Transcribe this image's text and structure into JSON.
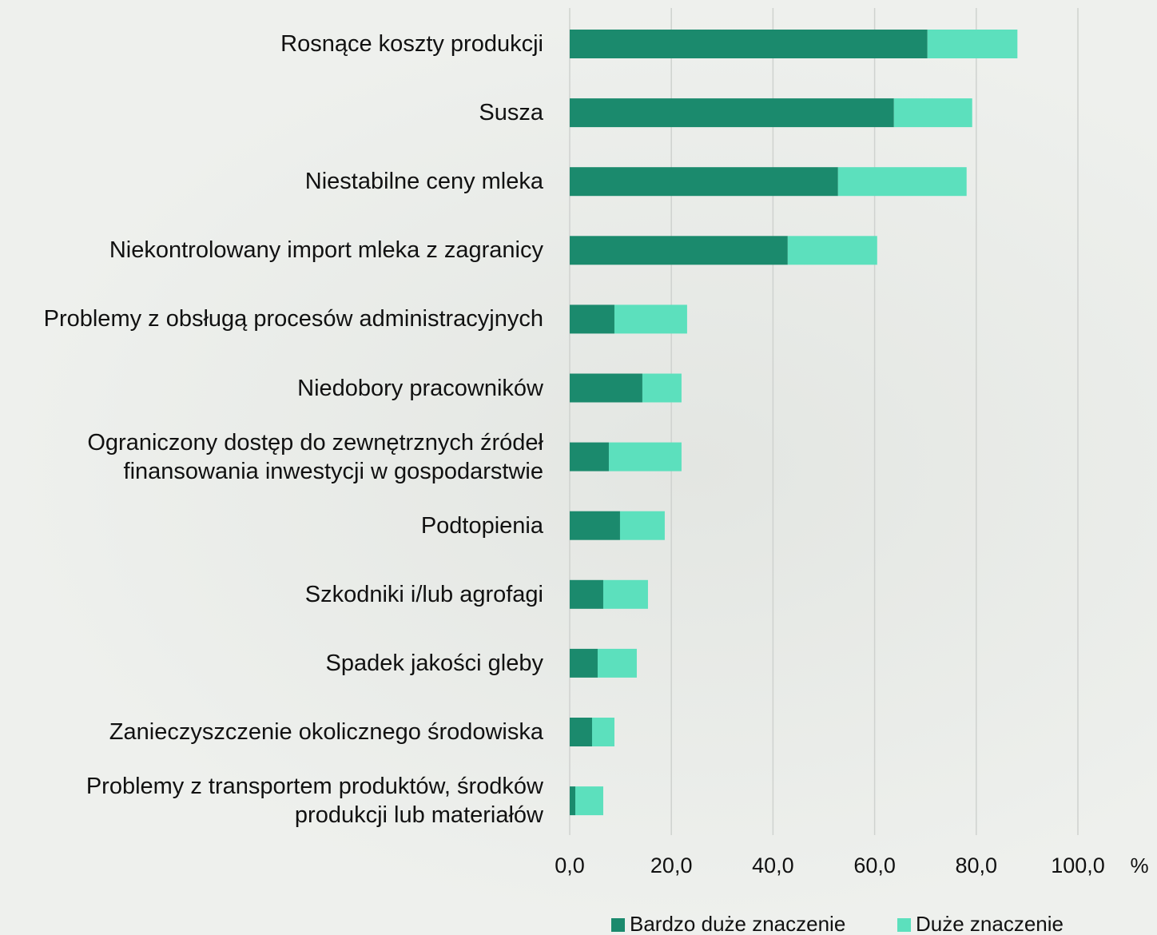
{
  "chart_data": {
    "type": "stacked-bar-horizontal",
    "categories": [
      "Rosnące koszty produkcji",
      "Susza",
      "Niestabilne ceny mleka",
      "Niekontrolowany import mleka z zagranicy",
      "Problemy z obsługą procesów administracyjnych",
      "Niedobory pracowników",
      "Ograniczony dostęp do zewnętrznych źródeł\nfinansowania inwestycji w gospodarstwie",
      "Podtopienia",
      "Szkodniki i/lub agrofagi",
      "Spadek jakości gleby",
      "Zanieczyszczenie okolicznego środowiska",
      "Problemy z transportem produktów, środków\nprodukcji lub materiałów"
    ],
    "series": [
      {
        "name": "Bardzo duże znaczenie",
        "color": "#1b8a6d",
        "values": [
          70.4,
          63.8,
          52.8,
          42.9,
          8.8,
          14.3,
          7.7,
          9.9,
          6.6,
          5.5,
          4.4,
          1.1
        ]
      },
      {
        "name": "Duże znaczenie",
        "color": "#5ce0bd",
        "values": [
          17.7,
          15.4,
          25.3,
          17.6,
          14.3,
          7.7,
          14.3,
          8.8,
          8.8,
          7.7,
          4.4,
          5.5
        ]
      }
    ],
    "xlim": [
      0,
      100
    ],
    "xticks": [
      {
        "value": 0,
        "label": "0,0"
      },
      {
        "value": 20,
        "label": "20,0"
      },
      {
        "value": 40,
        "label": "40,0"
      },
      {
        "value": 60,
        "label": "60,0"
      },
      {
        "value": 80,
        "label": "80,0"
      },
      {
        "value": 100,
        "label": "100,0"
      }
    ],
    "x_label": "%",
    "grid": true,
    "legend": "bottom"
  }
}
